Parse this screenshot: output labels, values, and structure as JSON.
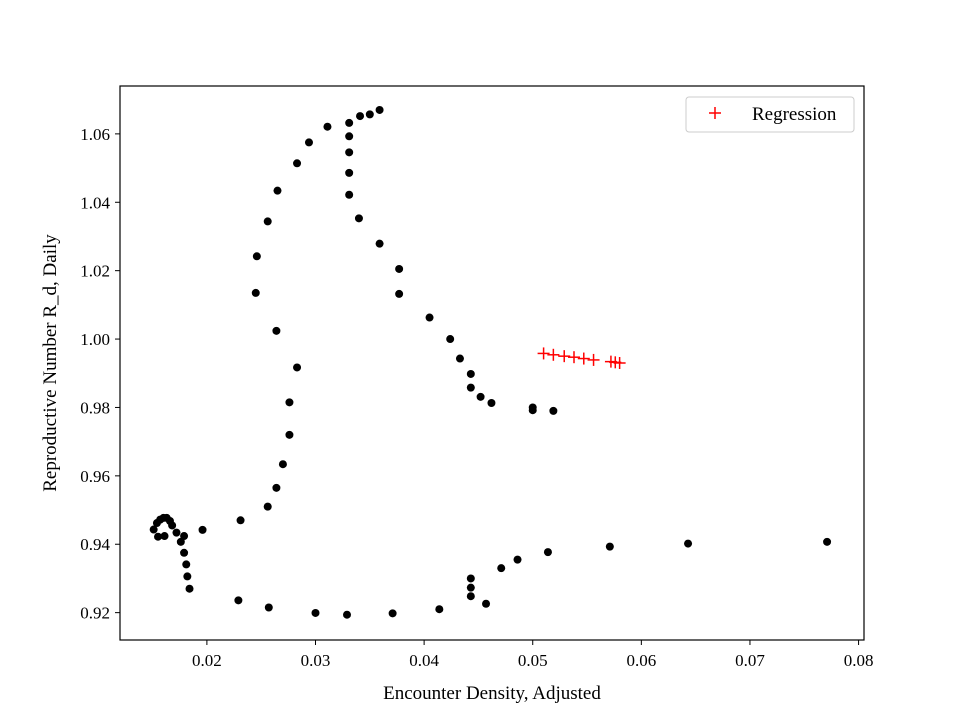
{
  "chart_data": {
    "type": "scatter",
    "title": "",
    "xlabel": "Encounter Density, Adjusted",
    "ylabel": "Reproductive Number R_d, Daily",
    "xlim": [
      0.012,
      0.0805
    ],
    "ylim": [
      0.912,
      1.074
    ],
    "xticks": [
      0.02,
      0.03,
      0.04,
      0.05,
      0.06,
      0.07,
      0.08
    ],
    "xtick_labels": [
      "0.02",
      "0.03",
      "0.04",
      "0.05",
      "0.06",
      "0.07",
      "0.08"
    ],
    "yticks": [
      0.92,
      0.94,
      0.96,
      0.98,
      1.0,
      1.02,
      1.04,
      1.06
    ],
    "ytick_labels": [
      "0.92",
      "0.94",
      "0.96",
      "0.98",
      "1.00",
      "1.02",
      "1.04",
      "1.06"
    ],
    "grid": false,
    "legend_position": "upper right",
    "series": [
      {
        "name": "",
        "marker": "dot",
        "color": "#000000",
        "points": [
          [
            0.0771,
            0.9407
          ],
          [
            0.0643,
            0.9402
          ],
          [
            0.0571,
            0.9393
          ],
          [
            0.0514,
            0.9377
          ],
          [
            0.0486,
            0.9355
          ],
          [
            0.0471,
            0.933
          ],
          [
            0.0443,
            0.93
          ],
          [
            0.0443,
            0.9273
          ],
          [
            0.0443,
            0.9248
          ],
          [
            0.0457,
            0.9226
          ],
          [
            0.0414,
            0.921
          ],
          [
            0.0371,
            0.9198
          ],
          [
            0.0329,
            0.9194
          ],
          [
            0.03,
            0.9199
          ],
          [
            0.0257,
            0.9215
          ],
          [
            0.0229,
            0.9236
          ],
          [
            0.0184,
            0.927
          ],
          [
            0.0182,
            0.9306
          ],
          [
            0.0181,
            0.9341
          ],
          [
            0.0179,
            0.9375
          ],
          [
            0.0176,
            0.9407
          ],
          [
            0.0172,
            0.9434
          ],
          [
            0.0168,
            0.9455
          ],
          [
            0.0166,
            0.9468
          ],
          [
            0.0163,
            0.9477
          ],
          [
            0.016,
            0.9477
          ],
          [
            0.0157,
            0.9472
          ],
          [
            0.0154,
            0.9462
          ],
          [
            0.0151,
            0.9443
          ],
          [
            0.0155,
            0.9422
          ],
          [
            0.0161,
            0.9424
          ],
          [
            0.0179,
            0.9424
          ],
          [
            0.0196,
            0.9442
          ],
          [
            0.0231,
            0.947
          ],
          [
            0.0256,
            0.951
          ],
          [
            0.0264,
            0.9565
          ],
          [
            0.027,
            0.9634
          ],
          [
            0.0276,
            0.972
          ],
          [
            0.0276,
            0.9815
          ],
          [
            0.0283,
            0.9917
          ],
          [
            0.0264,
            1.0024
          ],
          [
            0.0245,
            1.0135
          ],
          [
            0.0246,
            1.0242
          ],
          [
            0.0256,
            1.0344
          ],
          [
            0.0265,
            1.0434
          ],
          [
            0.0283,
            1.0514
          ],
          [
            0.0294,
            1.0575
          ],
          [
            0.0311,
            1.0621
          ],
          [
            0.0331,
            1.0632
          ],
          [
            0.0341,
            1.0652
          ],
          [
            0.035,
            1.0657
          ],
          [
            0.0359,
            1.067
          ],
          [
            0.0331,
            1.0593
          ],
          [
            0.0331,
            1.0546
          ],
          [
            0.0331,
            1.0486
          ],
          [
            0.0331,
            1.0422
          ],
          [
            0.034,
            1.0353
          ],
          [
            0.0359,
            1.0279
          ],
          [
            0.0377,
            1.0205
          ],
          [
            0.0377,
            1.0132
          ],
          [
            0.0405,
            1.0063
          ],
          [
            0.0424,
            1.0
          ],
          [
            0.0433,
            0.9943
          ],
          [
            0.0443,
            0.9898
          ],
          [
            0.0443,
            0.9858
          ],
          [
            0.0452,
            0.9831
          ],
          [
            0.0462,
            0.9813
          ],
          [
            0.05,
            0.98
          ],
          [
            0.05,
            0.9792
          ],
          [
            0.0519,
            0.979
          ]
        ]
      },
      {
        "name": "Regression",
        "marker": "plus",
        "color": "#ff0000",
        "points": [
          [
            0.051,
            0.9958
          ],
          [
            0.0519,
            0.9954
          ],
          [
            0.0529,
            0.995
          ],
          [
            0.0538,
            0.9947
          ],
          [
            0.0547,
            0.9943
          ],
          [
            0.0556,
            0.9939
          ],
          [
            0.0572,
            0.9934
          ],
          [
            0.0576,
            0.9932
          ],
          [
            0.058,
            0.993
          ]
        ]
      }
    ]
  }
}
